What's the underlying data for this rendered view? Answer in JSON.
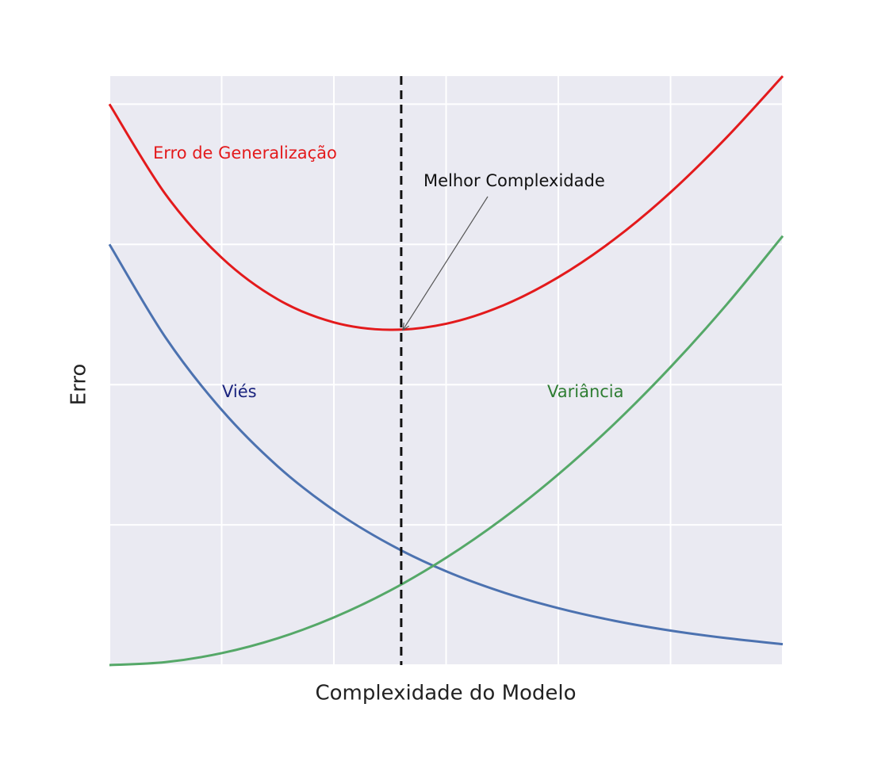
{
  "chart_data": {
    "type": "line",
    "xlabel": "Complexidade do Modelo",
    "ylabel": "Erro",
    "x": [
      0,
      0.5,
      1,
      1.5,
      2,
      2.5,
      3,
      3.5,
      4,
      4.5,
      5,
      5.5,
      6
    ],
    "series": [
      {
        "name": "Erro de Generalização",
        "color": "#e31a1c",
        "label_color": "#e31a1c",
        "values": [
          4.0,
          3.357,
          2.905,
          2.608,
          2.444,
          2.391,
          2.434,
          2.562,
          2.766,
          3.037,
          3.371,
          3.763,
          4.2
        ]
      },
      {
        "name": "Viés",
        "color": "#4c72b0",
        "label_color": "#1a237e",
        "values": [
          3.0,
          2.336,
          1.82,
          1.417,
          1.104,
          0.86,
          0.669,
          0.521,
          0.406,
          0.316,
          0.246,
          0.192,
          0.149
        ]
      },
      {
        "name": "Variância",
        "color": "#55a868",
        "label_color": "#2e7d32",
        "values": [
          0,
          0.021,
          0.085,
          0.191,
          0.34,
          0.531,
          0.765,
          1.041,
          1.36,
          1.721,
          2.125,
          2.571,
          3.06
        ]
      }
    ],
    "best_x": 2.6,
    "annotation": {
      "text": "Melhor Complexidade",
      "x": 2.6,
      "y": 2.4
    },
    "xlim": [
      0,
      6
    ],
    "ylim": [
      0,
      4.2
    ],
    "xticks": [
      0,
      1,
      2,
      3,
      4,
      5,
      6
    ],
    "yticks": [
      0,
      1,
      2,
      3,
      4
    ],
    "grid": true
  }
}
